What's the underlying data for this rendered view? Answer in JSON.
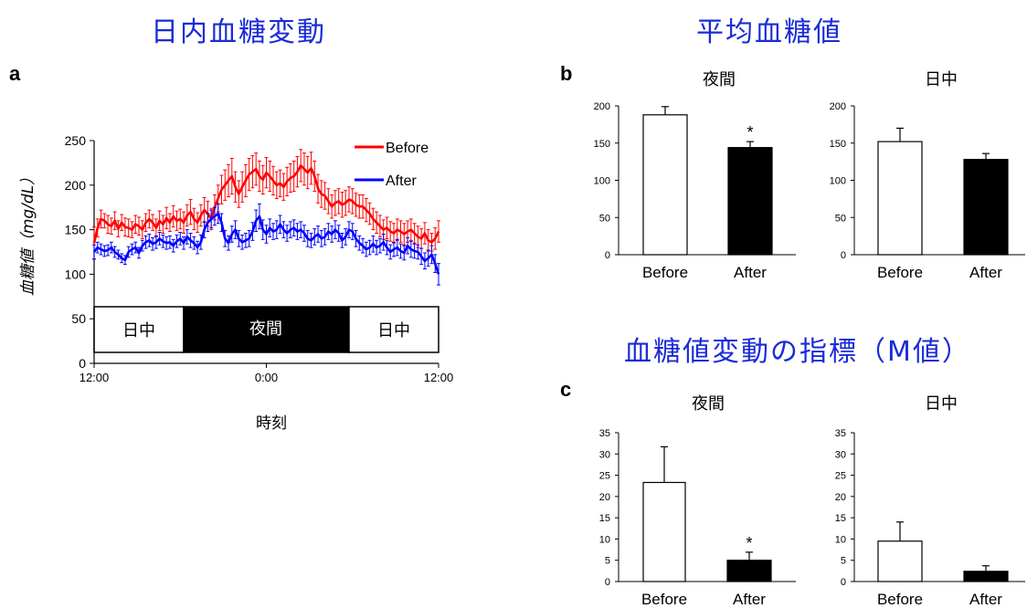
{
  "headings": {
    "left": "日内血糖変動",
    "right_top": "平均血糖値",
    "right_bottom": "血糖値変動の指標（M値）"
  },
  "panels": {
    "a": "a",
    "b": "b",
    "c": "c"
  },
  "colors": {
    "before": "#ff0000",
    "after": "#0000ff",
    "heading": "#1a2bd6"
  },
  "chart_data": [
    {
      "id": "a",
      "type": "line",
      "ylabel": "血糖値（mg/dL）",
      "xlabel": "時刻",
      "ylim": [
        0,
        250
      ],
      "yticks": [
        "0",
        "50",
        "100",
        "150",
        "200",
        "250"
      ],
      "xticks": [
        "12:00",
        "0:00",
        "12:00"
      ],
      "band": {
        "day1": "日中",
        "night": "夜間",
        "day2": "日中"
      },
      "legend": [
        "Before",
        "After"
      ],
      "legend_position": "top-right",
      "series": [
        {
          "name": "Before",
          "color": "#ff0000",
          "values": [
            135,
            152,
            162,
            160,
            156,
            154,
            160,
            151,
            158,
            153,
            152,
            150,
            156,
            154,
            150,
            158,
            162,
            158,
            152,
            160,
            156,
            163,
            158,
            165,
            160,
            162,
            158,
            166,
            170,
            162,
            158,
            166,
            172,
            168,
            162,
            175,
            185,
            195,
            200,
            205,
            210,
            198,
            190,
            198,
            205,
            212,
            215,
            218,
            210,
            206,
            214,
            210,
            205,
            200,
            202,
            198,
            204,
            208,
            210,
            215,
            222,
            218,
            214,
            219,
            210,
            196,
            190,
            188,
            182,
            176,
            180,
            182,
            178,
            180,
            184,
            182,
            178,
            176,
            176,
            172,
            168,
            162,
            158,
            154,
            150,
            152,
            148,
            146,
            150,
            148,
            145,
            148,
            150,
            146,
            142,
            140,
            146,
            138,
            136,
            140,
            148
          ],
          "errors": [
            18,
            10,
            10,
            8,
            10,
            9,
            10,
            9,
            9,
            10,
            10,
            9,
            10,
            10,
            10,
            10,
            10,
            9,
            10,
            11,
            10,
            12,
            10,
            12,
            11,
            11,
            12,
            12,
            14,
            12,
            11,
            12,
            14,
            14,
            12,
            14,
            15,
            16,
            17,
            18,
            20,
            17,
            15,
            17,
            18,
            18,
            18,
            18,
            17,
            16,
            17,
            17,
            16,
            15,
            15,
            15,
            16,
            16,
            17,
            17,
            18,
            18,
            18,
            18,
            17,
            16,
            15,
            15,
            14,
            13,
            14,
            14,
            14,
            14,
            14,
            14,
            13,
            13,
            13,
            13,
            12,
            12,
            12,
            12,
            11,
            12,
            11,
            11,
            12,
            12,
            12,
            12,
            12,
            11,
            12,
            11,
            12,
            12,
            10,
            12,
            12
          ]
        },
        {
          "name": "After",
          "color": "#0000ff",
          "values": [
            125,
            130,
            128,
            126,
            127,
            130,
            125,
            122,
            118,
            116,
            125,
            128,
            130,
            124,
            132,
            136,
            138,
            134,
            136,
            140,
            137,
            135,
            136,
            132,
            137,
            140,
            135,
            142,
            138,
            135,
            130,
            136,
            150,
            158,
            162,
            165,
            168,
            158,
            140,
            135,
            145,
            150,
            140,
            136,
            138,
            140,
            148,
            160,
            165,
            150,
            145,
            152,
            148,
            150,
            156,
            150,
            146,
            150,
            152,
            148,
            150,
            146,
            140,
            138,
            142,
            145,
            140,
            142,
            148,
            145,
            150,
            146,
            138,
            142,
            150,
            148,
            140,
            135,
            132,
            128,
            130,
            134,
            130,
            132,
            136,
            130,
            125,
            128,
            130,
            126,
            124,
            132,
            128,
            126,
            125,
            120,
            115,
            118,
            122,
            112,
            100
          ],
          "errors": [
            8,
            6,
            6,
            6,
            6,
            6,
            6,
            5,
            5,
            5,
            6,
            6,
            6,
            6,
            6,
            7,
            7,
            7,
            7,
            7,
            7,
            7,
            7,
            7,
            7,
            7,
            7,
            8,
            8,
            7,
            7,
            8,
            9,
            10,
            10,
            10,
            11,
            10,
            9,
            8,
            9,
            10,
            9,
            8,
            8,
            9,
            10,
            12,
            14,
            11,
            10,
            10,
            9,
            10,
            10,
            9,
            9,
            9,
            9,
            9,
            9,
            9,
            9,
            8,
            9,
            9,
            9,
            9,
            9,
            9,
            10,
            9,
            8,
            9,
            9,
            9,
            9,
            8,
            8,
            8,
            8,
            9,
            8,
            8,
            9,
            8,
            8,
            8,
            9,
            8,
            8,
            9,
            9,
            8,
            8,
            9,
            9,
            9,
            10,
            10,
            12
          ]
        }
      ]
    },
    {
      "id": "b-night",
      "type": "bar",
      "title": "夜間",
      "categories": [
        "Before",
        "After"
      ],
      "values": [
        188,
        144
      ],
      "errors": [
        11,
        8
      ],
      "significance": [
        "",
        "*"
      ],
      "ylim": [
        0,
        200
      ],
      "yticks": [
        "0",
        "50",
        "100",
        "150",
        "200"
      ]
    },
    {
      "id": "b-day",
      "type": "bar",
      "title": "日中",
      "categories": [
        "Before",
        "After"
      ],
      "values": [
        152,
        128
      ],
      "errors": [
        18,
        8
      ],
      "significance": [
        "",
        ""
      ],
      "ylim": [
        0,
        200
      ],
      "yticks": [
        "0",
        "50",
        "100",
        "150",
        "200"
      ]
    },
    {
      "id": "c-night",
      "type": "bar",
      "title": "夜間",
      "categories": [
        "Before",
        "After"
      ],
      "values": [
        23.3,
        5.0
      ],
      "errors": [
        8.4,
        1.9
      ],
      "significance": [
        "",
        "*"
      ],
      "ylim": [
        0,
        35
      ],
      "yticks": [
        "0",
        "5",
        "10",
        "15",
        "20",
        "25",
        "30",
        "35"
      ]
    },
    {
      "id": "c-day",
      "type": "bar",
      "title": "日中",
      "categories": [
        "Before",
        "After"
      ],
      "values": [
        9.5,
        2.4
      ],
      "errors": [
        4.5,
        1.3
      ],
      "significance": [
        "",
        ""
      ],
      "ylim": [
        0,
        35
      ],
      "yticks": [
        "0",
        "5",
        "10",
        "15",
        "20",
        "25",
        "30",
        "35"
      ]
    }
  ]
}
